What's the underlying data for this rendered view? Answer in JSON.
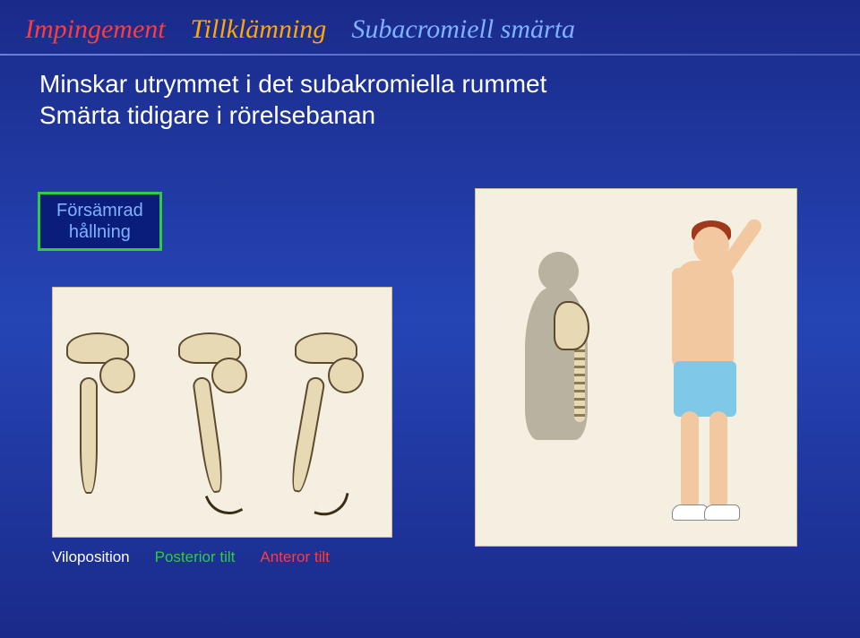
{
  "header": {
    "words": [
      {
        "text": "Impingement",
        "color": "#ff3b3b"
      },
      {
        "text": "Tillklämning",
        "color": "#ffa800"
      },
      {
        "text": "Subacromiell smärta",
        "color": "#7fb3ff"
      }
    ]
  },
  "body": {
    "line1": "Minskar utrymmet i det subakromiella rummet",
    "line2": "Smärta tidigare i rörelsebanan"
  },
  "callout": {
    "line1": "Försämrad",
    "line2": "hållning",
    "border_color": "#2ecc40",
    "text_color": "#7fb3ff"
  },
  "captions": [
    {
      "text": "Viloposition",
      "color": "#ffffff"
    },
    {
      "text": "Posterior tilt",
      "color": "#2ecc40"
    },
    {
      "text": "Anteror tilt",
      "color": "#ff3b3b"
    }
  ],
  "panels": {
    "left_bg": "#f5efe2",
    "right_bg": "#f5efe2"
  }
}
